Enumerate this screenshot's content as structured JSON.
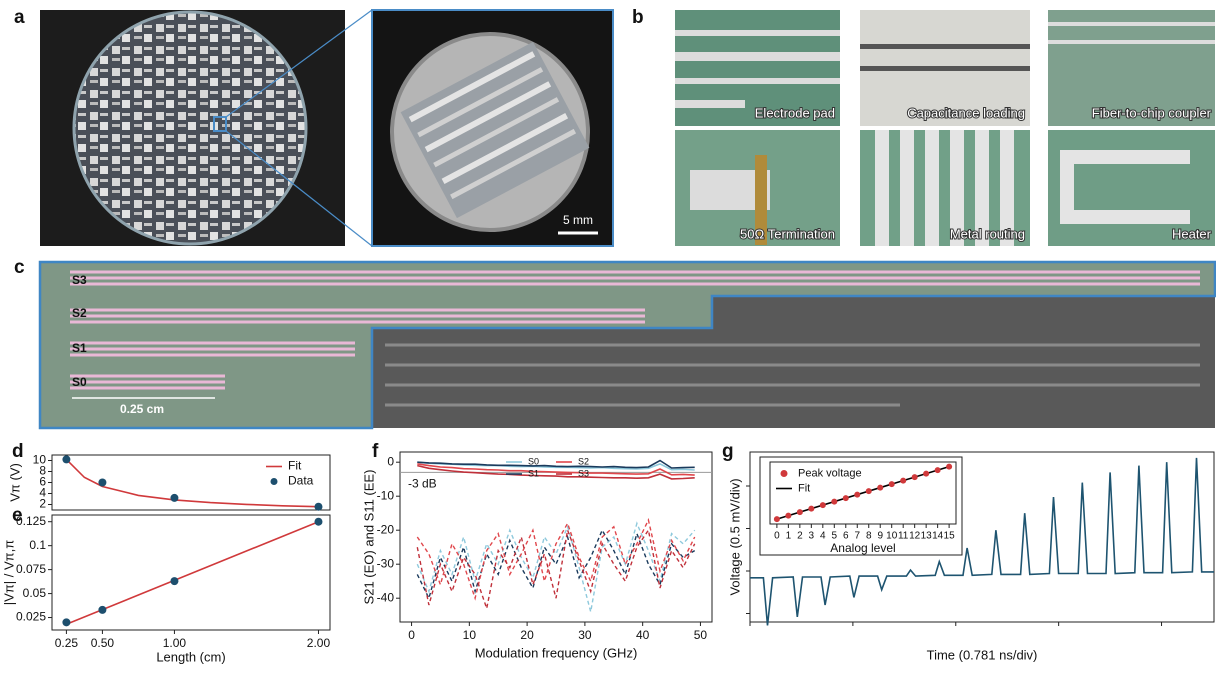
{
  "panel_labels": [
    "a",
    "b",
    "c",
    "d",
    "e",
    "f",
    "g"
  ],
  "photo_a": {
    "scale_bar": "5 mm"
  },
  "micrographs": [
    "Electrode pad",
    "Capacitance loading",
    "Fiber-to-chip coupler",
    "50Ω Termination",
    "Metal routing",
    "Heater"
  ],
  "chip": {
    "sections": [
      "S3",
      "S2",
      "S1",
      "S0"
    ],
    "scale_bar": "0.25 cm"
  },
  "chart_data": [
    {
      "type": "scatter",
      "ylabel": "Vπ (V)",
      "x": [
        0.25,
        0.5,
        1,
        2
      ],
      "xlim": [
        0.15,
        2.08
      ],
      "ylim": [
        1,
        11
      ],
      "yticks": [
        2,
        4,
        6,
        8,
        10
      ],
      "legend": "upper right",
      "series": [
        {
          "name": "Fit",
          "color": "#d0393b",
          "style": "line",
          "x": [
            0.25,
            0.375,
            0.5,
            0.75,
            1,
            1.25,
            1.5,
            1.75,
            2
          ],
          "values": [
            10.2,
            6.92,
            5.28,
            3.65,
            2.83,
            2.34,
            2.01,
            1.77,
            1.6
          ]
        },
        {
          "name": "Data",
          "color": "#1d4f6e",
          "values": [
            10.2,
            6,
            3.2,
            1.6
          ]
        }
      ]
    },
    {
      "type": "scatter",
      "xlabel": "Length (cm)",
      "ylabel": "|Vπ| / Vπ,π",
      "x": [
        0.25,
        0.5,
        1,
        2
      ],
      "xlim": [
        0.15,
        2.08
      ],
      "ylim": [
        0.012,
        0.132
      ],
      "xticks": [
        0.25,
        {
          "value": 0.5,
          "label": "0.50"
        },
        {
          "value": 1,
          "label": "1.00"
        },
        {
          "value": 2,
          "label": "2.00"
        }
      ],
      "yticks": [
        0.025,
        0.05,
        0.075,
        0.1,
        0.125
      ],
      "series": [
        {
          "color": "#d0393b",
          "style": "line",
          "x": [
            0.25,
            2
          ],
          "values": [
            0.018,
            0.125
          ]
        },
        {
          "color": "#1d4f6e",
          "values": [
            0.02,
            0.033,
            0.063,
            0.125
          ]
        }
      ]
    },
    {
      "type": "line",
      "xlabel": "Modulation frequency (GHz)",
      "ylabel": "S21 (EO) and S11 (EE)",
      "x": [
        1,
        3,
        5,
        7,
        9,
        11,
        13,
        15,
        17,
        19,
        21,
        23,
        25,
        27,
        29,
        31,
        33,
        35,
        37,
        39,
        41,
        43,
        45,
        47,
        49
      ],
      "xlim": [
        -2,
        52
      ],
      "ylim": [
        -47,
        3
      ],
      "xticks": [
        0,
        10,
        20,
        30,
        40,
        50
      ],
      "yticks": [
        0,
        -10,
        -20,
        -30,
        -40
      ],
      "reference_line": -3,
      "annotation": "-3 dB",
      "legend": "upper center",
      "series": [
        {
          "name": "S0",
          "color": "#8ec9dc",
          "values": [
            0,
            -0.3,
            -0.5,
            -0.6,
            -0.8,
            -0.9,
            -1.0,
            -1.0,
            -1.2,
            -1.3,
            -1.2,
            -1.4,
            -1.5,
            -1.5,
            -1.6,
            -1.7,
            -1.6,
            -1.8,
            -1.9,
            -2.0,
            -1.8,
            -0.5,
            -2.2,
            -2.1,
            -2.3
          ],
          "s11_values": [
            -30,
            -38,
            -26,
            -33,
            -22,
            -35,
            -24,
            -30,
            -20,
            -28,
            -34,
            -22,
            -27,
            -19,
            -31,
            -44,
            -25,
            -22,
            -30,
            -18,
            -26,
            -35,
            -21,
            -24,
            -20
          ]
        },
        {
          "name": "S1",
          "color": "#1a3a5c",
          "values": [
            0,
            -0.2,
            -0.3,
            -0.5,
            -0.6,
            -0.6,
            -0.8,
            -0.9,
            -0.9,
            -1.0,
            -1.1,
            -1.0,
            -1.2,
            -1.3,
            -1.2,
            -1.3,
            -1.4,
            -1.3,
            -1.5,
            -1.6,
            -1.4,
            0.5,
            -1.7,
            -1.6,
            -1.5
          ],
          "s11_values": [
            -33,
            -40,
            -28,
            -35,
            -25,
            -38,
            -27,
            -33,
            -23,
            -31,
            -37,
            -25,
            -30,
            -22,
            -34,
            -28,
            -20,
            -26,
            -33,
            -21,
            -30,
            -36,
            -24,
            -28,
            -26
          ]
        },
        {
          "name": "S2",
          "color": "#e0474c",
          "values": [
            -0.5,
            -1.0,
            -1.4,
            -1.6,
            -1.9,
            -2.0,
            -2.2,
            -2.3,
            -2.5,
            -2.5,
            -2.7,
            -2.8,
            -2.9,
            -3.0,
            -3.1,
            -3.2,
            -3.2,
            -3.3,
            -3.4,
            -3.5,
            -3.4,
            -2.0,
            -3.7,
            -3.6,
            -3.8
          ],
          "s11_values": [
            -22,
            -27,
            -36,
            -24,
            -30,
            -40,
            -26,
            -21,
            -33,
            -27,
            -20,
            -35,
            -24,
            -18,
            -28,
            -35,
            -22,
            -19,
            -30,
            -24,
            -17,
            -32,
            -23,
            -29,
            -22
          ]
        },
        {
          "name": "S3",
          "color": "#c0303a",
          "values": [
            -1.0,
            -1.8,
            -2.2,
            -2.6,
            -2.9,
            -3.1,
            -3.3,
            -3.5,
            -3.6,
            -3.8,
            -3.9,
            -4.0,
            -4.1,
            -4.3,
            -4.3,
            -4.4,
            -4.5,
            -4.6,
            -4.6,
            -4.7,
            -4.6,
            -3.5,
            -4.9,
            -4.8,
            -4.6
          ],
          "s11_values": [
            -25,
            -42,
            -30,
            -38,
            -28,
            -33,
            -43,
            -26,
            -31,
            -22,
            -36,
            -27,
            -40,
            -20,
            -29,
            -38,
            -24,
            -30,
            -35,
            -25,
            -20,
            -37,
            -26,
            -31,
            -24
          ]
        }
      ]
    },
    {
      "type": "line",
      "xlabel": "Time (0.781 ns/div)",
      "ylabel": "Voltage (0.5 mV/div)",
      "tick_labels": false,
      "xlim": [
        0,
        4.51
      ],
      "ylim": [
        -0.6,
        1.4
      ],
      "xticks": [
        0,
        1,
        2,
        3,
        4
      ],
      "yticks": [
        -0.5,
        0,
        0.5,
        1
      ],
      "series": [
        {
          "color": "#1e5470",
          "style": "line",
          "x": [
            0,
            0.13,
            0.17,
            0.22,
            0.42,
            0.46,
            0.51,
            0.69,
            0.73,
            0.78,
            0.97,
            1.01,
            1.06,
            1.24,
            1.28,
            1.33,
            1.52,
            1.56,
            1.61,
            1.8,
            1.84,
            1.89,
            2.07,
            2.11,
            2.16,
            2.35,
            2.39,
            2.44,
            2.63,
            2.67,
            2.72,
            2.91,
            2.95,
            3.0,
            3.19,
            3.23,
            3.28,
            3.46,
            3.5,
            3.55,
            3.74,
            3.78,
            3.83,
            4.01,
            4.05,
            4.1,
            4.3,
            4.34,
            4.39,
            4.51
          ],
          "values": [
            -0.08,
            -0.08,
            -0.64,
            -0.08,
            -0.07,
            -0.54,
            -0.07,
            -0.07,
            -0.4,
            -0.07,
            -0.06,
            -0.31,
            -0.06,
            -0.06,
            -0.22,
            -0.06,
            -0.06,
            0.01,
            -0.06,
            -0.05,
            0.11,
            -0.05,
            -0.05,
            0.27,
            -0.05,
            -0.04,
            0.48,
            -0.04,
            -0.04,
            0.68,
            -0.04,
            -0.03,
            0.87,
            -0.03,
            -0.03,
            1.04,
            -0.03,
            -0.03,
            1.16,
            -0.03,
            -0.02,
            1.24,
            -0.02,
            -0.02,
            1.28,
            -0.02,
            -0.01,
            1.33,
            -0.01,
            -0.01
          ]
        }
      ]
    },
    {
      "type": "scatter",
      "xlabel": "Analog level",
      "x": [
        0,
        1,
        2,
        3,
        4,
        5,
        6,
        7,
        8,
        9,
        10,
        11,
        12,
        13,
        14,
        15
      ],
      "xlim": [
        -0.6,
        15.6
      ],
      "ylim": [
        -0.8,
        1.5
      ],
      "xticks": [
        0,
        1,
        2,
        3,
        4,
        5,
        6,
        7,
        8,
        9,
        10,
        11,
        12,
        13,
        14,
        15
      ],
      "legend": "upper left",
      "series": [
        {
          "name": "Peak voltage",
          "color": "#d0393b",
          "values": [
            -0.62,
            -0.49,
            -0.36,
            -0.23,
            -0.1,
            0.03,
            0.16,
            0.29,
            0.42,
            0.55,
            0.68,
            0.81,
            0.94,
            1.07,
            1.2,
            1.33
          ]
        },
        {
          "name": "Fit",
          "color": "#000000",
          "style": "line",
          "x": [
            0,
            15
          ],
          "values": [
            -0.62,
            1.33
          ]
        }
      ]
    }
  ]
}
